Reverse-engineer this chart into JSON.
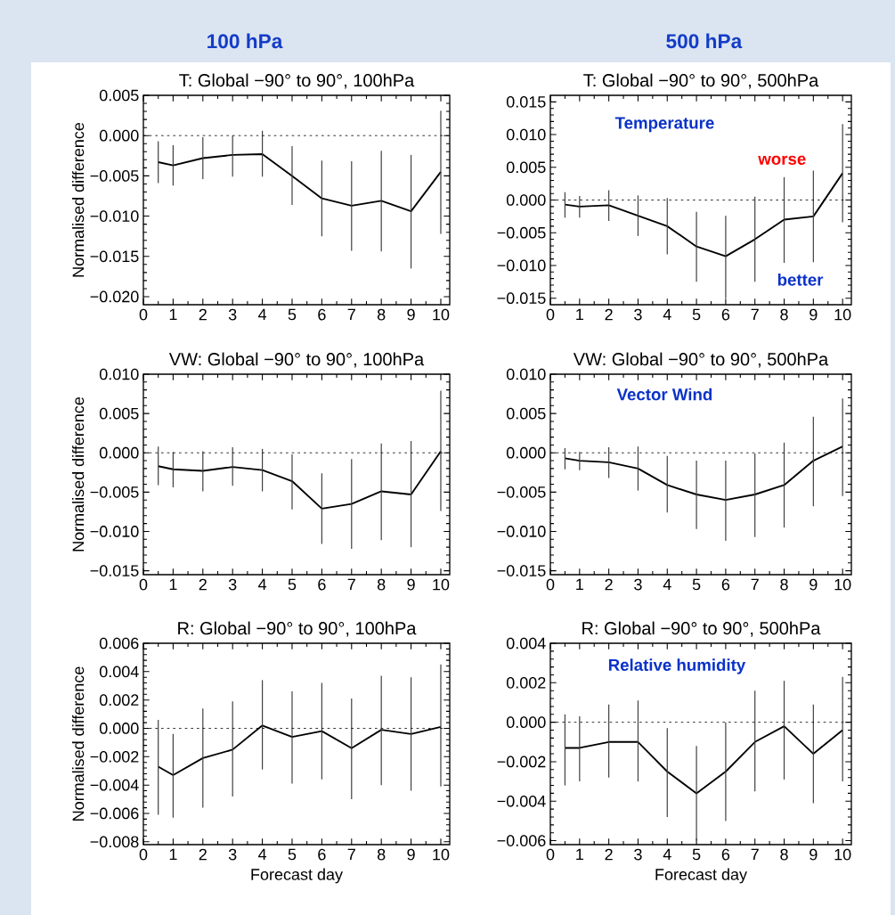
{
  "chart_data": [
    {
      "type": "line",
      "title": "T: Global −90° to 90°, 100hPa",
      "ylabel": "Normalised difference",
      "marker": "none",
      "x": [
        0.5,
        1,
        2,
        3,
        4,
        5,
        6,
        7,
        8,
        9,
        10
      ],
      "xlim": [
        0,
        10.3
      ],
      "xticks": [
        0,
        1,
        2,
        3,
        4,
        5,
        6,
        7,
        8,
        9,
        10
      ],
      "ylim": [
        -0.021,
        0.005
      ],
      "yticks": [
        {
          "value": 0.005,
          "label": "0.005"
        },
        {
          "value": 0,
          "label": "0.000"
        },
        {
          "value": -0.005,
          "label": "−0.005"
        },
        {
          "value": -0.01,
          "label": "−0.010"
        },
        {
          "value": -0.015,
          "label": "−0.015"
        },
        {
          "value": -0.02,
          "label": "−0.020"
        }
      ],
      "series": [
        {
          "color": "#000000",
          "values": [
            -0.0033,
            -0.0037,
            -0.0028,
            -0.0024,
            -0.0023,
            -0.005,
            -0.0078,
            -0.0087,
            -0.0081,
            -0.0094,
            -0.0045
          ],
          "errors": [
            [
              -0.0059,
              -0.0007
            ],
            [
              -0.0062,
              -0.0012
            ],
            [
              -0.0054,
              -0.0002
            ],
            [
              -0.0051,
              0.0
            ],
            [
              -0.0051,
              0.0006
            ],
            [
              -0.0086,
              -0.0013
            ],
            [
              -0.0125,
              -0.0031
            ],
            [
              -0.0143,
              -0.0032
            ],
            [
              -0.0144,
              -0.0019
            ],
            [
              -0.0165,
              -0.0024
            ],
            [
              -0.0122,
              0.0031
            ]
          ]
        }
      ],
      "ref_lines": [
        {
          "axis": "y",
          "value": 0,
          "line_style": "dashed"
        }
      ],
      "annotations": [
        "100 hPa"
      ]
    },
    {
      "type": "line",
      "title": "T: Global −90° to 90°, 500hPa",
      "marker": "none",
      "x": [
        0.5,
        1,
        2,
        3,
        4,
        5,
        6,
        7,
        8,
        9,
        10
      ],
      "xlim": [
        0,
        10.3
      ],
      "xticks": [
        0,
        1,
        2,
        3,
        4,
        5,
        6,
        7,
        8,
        9,
        10
      ],
      "ylim": [
        -0.016,
        0.016
      ],
      "yticks": [
        {
          "value": 0.015,
          "label": "0.015"
        },
        {
          "value": 0.01,
          "label": "0.010"
        },
        {
          "value": 0.005,
          "label": "0.005"
        },
        {
          "value": 0,
          "label": "0.000"
        },
        {
          "value": -0.005,
          "label": "−0.005"
        },
        {
          "value": -0.01,
          "label": "−0.010"
        },
        {
          "value": -0.015,
          "label": "−0.015"
        }
      ],
      "series": [
        {
          "color": "#000000",
          "values": [
            -0.0007,
            -0.001,
            -0.0008,
            -0.0024,
            -0.004,
            -0.0071,
            -0.0086,
            -0.006,
            -0.003,
            -0.0025,
            0.0041
          ],
          "errors": [
            [
              -0.0027,
              0.0012
            ],
            [
              -0.0027,
              0.0006
            ],
            [
              -0.0032,
              0.0015
            ],
            [
              -0.0055,
              0.0007
            ],
            [
              -0.0083,
              0.0003
            ],
            [
              -0.0125,
              -0.0018
            ],
            [
              -0.015,
              -0.0024
            ],
            [
              -0.0125,
              0.0005
            ],
            [
              -0.0096,
              0.0035
            ],
            [
              -0.0095,
              0.0045
            ],
            [
              -0.0034,
              0.0116
            ]
          ]
        }
      ],
      "ref_lines": [
        {
          "axis": "y",
          "value": 0,
          "line_style": "dashed"
        }
      ],
      "annotations": [
        "500 hPa",
        "Temperature",
        "worse",
        "better"
      ]
    },
    {
      "type": "line",
      "title": "VW: Global −90° to 90°, 100hPa",
      "ylabel": "Normalised difference",
      "marker": "none",
      "x": [
        0.5,
        1,
        2,
        3,
        4,
        5,
        6,
        7,
        8,
        9,
        10
      ],
      "xlim": [
        0,
        10.3
      ],
      "xticks": [
        0,
        1,
        2,
        3,
        4,
        5,
        6,
        7,
        8,
        9,
        10
      ],
      "ylim": [
        -0.0155,
        0.01
      ],
      "yticks": [
        {
          "value": 0.01,
          "label": "0.010"
        },
        {
          "value": 0.005,
          "label": "0.005"
        },
        {
          "value": 0,
          "label": "0.000"
        },
        {
          "value": -0.005,
          "label": "−0.005"
        },
        {
          "value": -0.01,
          "label": "−0.010"
        },
        {
          "value": -0.015,
          "label": "−0.015"
        }
      ],
      "series": [
        {
          "color": "#000000",
          "values": [
            -0.0017,
            -0.0021,
            -0.0023,
            -0.0018,
            -0.0022,
            -0.0036,
            -0.0071,
            -0.0065,
            -0.0049,
            -0.0053,
            0.0002
          ],
          "errors": [
            [
              -0.0041,
              0.0008
            ],
            [
              -0.0044,
              0.0001
            ],
            [
              -0.0049,
              0.0002
            ],
            [
              -0.0042,
              0.0007
            ],
            [
              -0.0049,
              0.0005
            ],
            [
              -0.0072,
              -0.0002
            ],
            [
              -0.0116,
              -0.0026
            ],
            [
              -0.0122,
              -0.0008
            ],
            [
              -0.0111,
              0.0012
            ],
            [
              -0.012,
              0.0015
            ],
            [
              -0.0074,
              0.0079
            ]
          ]
        }
      ],
      "ref_lines": [
        {
          "axis": "y",
          "value": 0,
          "line_style": "dashed"
        }
      ]
    },
    {
      "type": "line",
      "title": "VW: Global −90° to 90°, 500hPa",
      "marker": "none",
      "x": [
        0.5,
        1,
        2,
        3,
        4,
        5,
        6,
        7,
        8,
        9,
        10
      ],
      "xlim": [
        0,
        10.3
      ],
      "xticks": [
        0,
        1,
        2,
        3,
        4,
        5,
        6,
        7,
        8,
        9,
        10
      ],
      "ylim": [
        -0.0155,
        0.01
      ],
      "yticks": [
        {
          "value": 0.01,
          "label": "0.010"
        },
        {
          "value": 0.005,
          "label": "0.005"
        },
        {
          "value": 0,
          "label": "0.000"
        },
        {
          "value": -0.005,
          "label": "−0.005"
        },
        {
          "value": -0.01,
          "label": "−0.010"
        },
        {
          "value": -0.015,
          "label": "−0.015"
        }
      ],
      "series": [
        {
          "color": "#000000",
          "values": [
            -0.0007,
            -0.001,
            -0.0012,
            -0.002,
            -0.0041,
            -0.0053,
            -0.006,
            -0.0053,
            -0.0041,
            -0.001,
            0.0008
          ],
          "errors": [
            [
              -0.0021,
              0.0006
            ],
            [
              -0.0022,
              0.0001
            ],
            [
              -0.0032,
              0.0007
            ],
            [
              -0.0048,
              0.0008
            ],
            [
              -0.0076,
              -0.0004
            ],
            [
              -0.0097,
              -0.001
            ],
            [
              -0.0112,
              -0.001
            ],
            [
              -0.0107,
              -0.0001
            ],
            [
              -0.0095,
              0.0013
            ],
            [
              -0.0068,
              0.0046
            ],
            [
              -0.0055,
              0.0069
            ]
          ]
        }
      ],
      "ref_lines": [
        {
          "axis": "y",
          "value": 0,
          "line_style": "dashed"
        }
      ],
      "annotations": [
        "Vector Wind"
      ]
    },
    {
      "type": "line",
      "title": "R: Global −90° to 90°, 100hPa",
      "ylabel": "Normalised difference",
      "xlabel": "Forecast day",
      "marker": "none",
      "x": [
        0.5,
        1,
        2,
        3,
        4,
        5,
        6,
        7,
        8,
        9,
        10
      ],
      "xlim": [
        0,
        10.3
      ],
      "xticks": [
        0,
        1,
        2,
        3,
        4,
        5,
        6,
        7,
        8,
        9,
        10
      ],
      "ylim": [
        -0.0082,
        0.006
      ],
      "yticks": [
        {
          "value": 0.006,
          "label": "0.006"
        },
        {
          "value": 0.004,
          "label": "0.004"
        },
        {
          "value": 0.002,
          "label": "0.002"
        },
        {
          "value": 0,
          "label": "0.000"
        },
        {
          "value": -0.002,
          "label": "−0.002"
        },
        {
          "value": -0.004,
          "label": "−0.004"
        },
        {
          "value": -0.006,
          "label": "−0.006"
        },
        {
          "value": -0.008,
          "label": "−0.008"
        }
      ],
      "series": [
        {
          "color": "#000000",
          "values": [
            -0.0027,
            -0.0033,
            -0.0021,
            -0.0015,
            0.0002,
            -0.0006,
            -0.0002,
            -0.0014,
            -0.0001,
            -0.0004,
            0.0001
          ],
          "errors": [
            [
              -0.0061,
              0.0006
            ],
            [
              -0.0063,
              -0.0004
            ],
            [
              -0.0056,
              0.0014
            ],
            [
              -0.0048,
              0.0019
            ],
            [
              -0.0029,
              0.0034
            ],
            [
              -0.0039,
              0.0026
            ],
            [
              -0.0036,
              0.0032
            ],
            [
              -0.005,
              0.0021
            ],
            [
              -0.004,
              0.0037
            ],
            [
              -0.0044,
              0.0036
            ],
            [
              -0.0041,
              0.0045
            ]
          ]
        }
      ],
      "ref_lines": [
        {
          "axis": "y",
          "value": 0,
          "line_style": "dashed"
        }
      ]
    },
    {
      "type": "line",
      "title": "R: Global −90° to 90°, 500hPa",
      "xlabel": "Forecast day",
      "marker": "none",
      "x": [
        0.5,
        1,
        2,
        3,
        4,
        5,
        6,
        7,
        8,
        9,
        10
      ],
      "xlim": [
        0,
        10.3
      ],
      "xticks": [
        0,
        1,
        2,
        3,
        4,
        5,
        6,
        7,
        8,
        9,
        10
      ],
      "ylim": [
        -0.0062,
        0.004
      ],
      "yticks": [
        {
          "value": 0.004,
          "label": "0.004"
        },
        {
          "value": 0.002,
          "label": "0.002"
        },
        {
          "value": 0,
          "label": "0.000"
        },
        {
          "value": -0.002,
          "label": "−0.002"
        },
        {
          "value": -0.004,
          "label": "−0.004"
        },
        {
          "value": -0.006,
          "label": "−0.006"
        }
      ],
      "series": [
        {
          "color": "#000000",
          "values": [
            -0.0013,
            -0.0013,
            -0.001,
            -0.001,
            -0.0025,
            -0.0036,
            -0.0025,
            -0.001,
            -0.0002,
            -0.0016,
            -0.0004
          ],
          "errors": [
            [
              -0.0032,
              0.0004
            ],
            [
              -0.003,
              0.0003
            ],
            [
              -0.0028,
              0.0009
            ],
            [
              -0.003,
              0.0011
            ],
            [
              -0.0048,
              -0.0003
            ],
            [
              -0.006,
              -0.0012
            ],
            [
              -0.005,
              0.0
            ],
            [
              -0.0035,
              0.0016
            ],
            [
              -0.0029,
              0.0021
            ],
            [
              -0.0041,
              0.0009
            ],
            [
              -0.003,
              0.0023
            ]
          ]
        }
      ],
      "ref_lines": [
        {
          "axis": "y",
          "value": 0,
          "line_style": "dashed"
        }
      ],
      "annotations": [
        "Relative humidity"
      ]
    }
  ]
}
